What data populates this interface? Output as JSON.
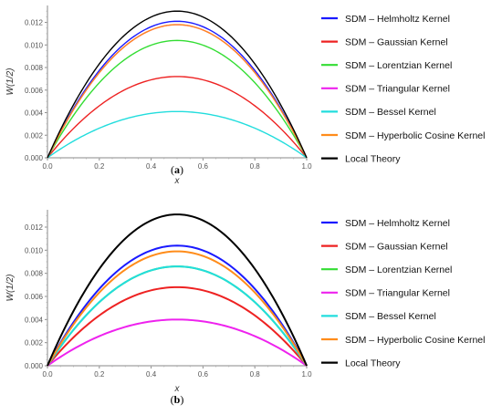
{
  "chart_data": [
    {
      "type": "line",
      "panel_label": "(a)",
      "panel_letter": "a",
      "xlabel": "x",
      "ylabel": "W(1/2)",
      "xlim": [
        0.0,
        1.0
      ],
      "ylim": [
        0.0,
        0.0135
      ],
      "xticks": [
        0.0,
        0.2,
        0.4,
        0.6,
        0.8,
        1.0
      ],
      "xtick_labels": [
        "0.0",
        "0.2",
        "0.4",
        "0.6",
        "0.8",
        "1.0"
      ],
      "yticks": [
        0.0,
        0.002,
        0.004,
        0.006,
        0.008,
        0.01,
        0.012
      ],
      "ytick_labels": [
        "0.000",
        "0.002",
        "0.004",
        "0.006",
        "0.008",
        "0.010",
        "0.012"
      ],
      "legend_position": "right",
      "series": [
        {
          "name": "SDM – Helmholtz Kernel",
          "color": "#1a1aff",
          "peak": 0.0121
        },
        {
          "name": "SDM – Gaussian Kernel",
          "color": "#ee2222",
          "peak": 0.0072
        },
        {
          "name": "SDM – Lorentzian Kernel",
          "color": "#33dd33",
          "peak": 0.0104
        },
        {
          "name": "SDM – Triangular Kernel",
          "color": "#ee22ee",
          "peak": 0.0118
        },
        {
          "name": "SDM – Bessel Kernel",
          "color": "#22dddd",
          "peak": 0.0041
        },
        {
          "name": "SDM – Hyperbolic Cosine Kernel",
          "color": "#ff8c1a",
          "peak": 0.0118
        },
        {
          "name": "Local Theory",
          "color": "#000000",
          "peak": 0.013
        }
      ]
    },
    {
      "type": "line",
      "panel_label": "(b)",
      "panel_letter": "b",
      "xlabel": "x",
      "ylabel": "W(1/2)",
      "xlim": [
        0.0,
        1.0
      ],
      "ylim": [
        0.0,
        0.0135
      ],
      "xticks": [
        0.0,
        0.2,
        0.4,
        0.6,
        0.8,
        1.0
      ],
      "xtick_labels": [
        "0.0",
        "0.2",
        "0.4",
        "0.6",
        "0.8",
        "1.0"
      ],
      "yticks": [
        0.0,
        0.002,
        0.004,
        0.006,
        0.008,
        0.01,
        0.012
      ],
      "ytick_labels": [
        "0.000",
        "0.002",
        "0.004",
        "0.006",
        "0.008",
        "0.010",
        "0.012"
      ],
      "legend_position": "right",
      "series": [
        {
          "name": "SDM – Helmholtz Kernel",
          "color": "#1a1aff",
          "peak": 0.0104
        },
        {
          "name": "SDM – Gaussian Kernel",
          "color": "#ee2222",
          "peak": 0.0068
        },
        {
          "name": "SDM – Lorentzian Kernel",
          "color": "#33dd33",
          "peak": 0.0086
        },
        {
          "name": "SDM – Triangular Kernel",
          "color": "#ee22ee",
          "peak": 0.004
        },
        {
          "name": "SDM – Bessel Kernel",
          "color": "#22dddd",
          "peak": 0.0086
        },
        {
          "name": "SDM – Hyperbolic Cosine Kernel",
          "color": "#ff8c1a",
          "peak": 0.0099
        },
        {
          "name": "Local Theory",
          "color": "#000000",
          "peak": 0.0131
        }
      ]
    }
  ]
}
